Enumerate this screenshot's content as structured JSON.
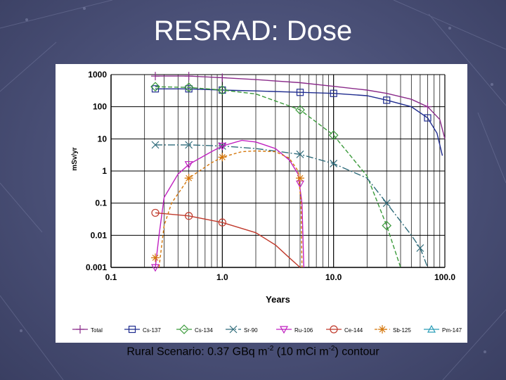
{
  "slide": {
    "title": "RESRAD: Dose",
    "caption": {
      "part1": "Rural Scenario: 0.37 GBq m",
      "sup1": "-2",
      "part2": " (10 mCi m",
      "sup2": "-2",
      "part3": ") contour"
    }
  },
  "chart_data": {
    "type": "line",
    "title": "",
    "xlabel": "Years",
    "ylabel": "mSv/yr",
    "x_scale": "log",
    "y_scale": "log",
    "xlim": [
      0.1,
      100
    ],
    "ylim": [
      0.001,
      1000
    ],
    "x_ticks": [
      {
        "v": 0.1,
        "label": "0.1"
      },
      {
        "v": 1,
        "label": "1.0"
      },
      {
        "v": 10,
        "label": "10.0"
      },
      {
        "v": 100,
        "label": "100.0"
      }
    ],
    "y_ticks": [
      {
        "v": 1000,
        "label": "1000"
      },
      {
        "v": 100,
        "label": "100"
      },
      {
        "v": 10,
        "label": "10"
      },
      {
        "v": 1,
        "label": "1"
      },
      {
        "v": 0.1,
        "label": "0.1"
      },
      {
        "v": 0.01,
        "label": "0.01"
      },
      {
        "v": 0.001,
        "label": "0.001"
      }
    ],
    "grid": true,
    "legend_position": "bottom",
    "series": [
      {
        "name": "Total",
        "color": "#8a2b8a",
        "marker": "plus",
        "dash": "",
        "points": [
          [
            0.25,
            900
          ],
          [
            0.5,
            900
          ],
          [
            1,
            800
          ],
          [
            2,
            700
          ],
          [
            5,
            560
          ],
          [
            10,
            430
          ],
          [
            20,
            330
          ],
          [
            30,
            260
          ],
          [
            50,
            170
          ],
          [
            70,
            100
          ],
          [
            90,
            40
          ],
          [
            100,
            10
          ]
        ],
        "markers": [
          [
            0.25,
            900
          ],
          [
            0.5,
            900
          ],
          [
            1,
            800
          ],
          [
            70,
            100
          ]
        ]
      },
      {
        "name": "Cs-137",
        "color": "#1f2c8f",
        "marker": "square",
        "dash": "",
        "points": [
          [
            0.25,
            360
          ],
          [
            0.5,
            360
          ],
          [
            1,
            330
          ],
          [
            2,
            310
          ],
          [
            5,
            280
          ],
          [
            10,
            260
          ],
          [
            20,
            220
          ],
          [
            30,
            160
          ],
          [
            50,
            100
          ],
          [
            70,
            45
          ],
          [
            85,
            15
          ],
          [
            95,
            3
          ]
        ],
        "markers": [
          [
            0.25,
            360
          ],
          [
            0.5,
            360
          ],
          [
            1,
            330
          ],
          [
            5,
            280
          ],
          [
            10,
            260
          ],
          [
            30,
            160
          ],
          [
            70,
            45
          ]
        ]
      },
      {
        "name": "Cs-134",
        "color": "#3a9a3a",
        "marker": "diamond",
        "dash": "6,3",
        "points": [
          [
            0.25,
            420
          ],
          [
            0.5,
            400
          ],
          [
            1,
            330
          ],
          [
            2,
            250
          ],
          [
            5,
            80
          ],
          [
            10,
            13
          ],
          [
            20,
            0.7
          ],
          [
            30,
            0.02
          ],
          [
            40,
            0.001
          ]
        ],
        "markers": [
          [
            0.25,
            420
          ],
          [
            0.5,
            400
          ],
          [
            1,
            330
          ],
          [
            5,
            80
          ],
          [
            10,
            13
          ],
          [
            30,
            0.02
          ]
        ]
      },
      {
        "name": "Sr-90",
        "color": "#2e6b7a",
        "marker": "x",
        "dash": "10,3,2,3",
        "points": [
          [
            0.25,
            6.5
          ],
          [
            0.5,
            6.5
          ],
          [
            1,
            6
          ],
          [
            2,
            5
          ],
          [
            5,
            3.3
          ],
          [
            10,
            1.7
          ],
          [
            20,
            0.6
          ],
          [
            30,
            0.1
          ],
          [
            50,
            0.01
          ],
          [
            60,
            0.004
          ],
          [
            70,
            0.001
          ]
        ],
        "markers": [
          [
            0.25,
            6.5
          ],
          [
            0.5,
            6.5
          ],
          [
            1,
            6
          ],
          [
            5,
            3.3
          ],
          [
            10,
            1.7
          ],
          [
            30,
            0.1
          ],
          [
            60,
            0.004
          ]
        ]
      },
      {
        "name": "Ru-106",
        "color": "#c020c0",
        "marker": "triangle-down",
        "dash": "",
        "points": [
          [
            0.25,
            0.001
          ],
          [
            0.27,
            0.01
          ],
          [
            0.3,
            0.15
          ],
          [
            0.4,
            0.8
          ],
          [
            0.5,
            1.6
          ],
          [
            0.8,
            4
          ],
          [
            1,
            6
          ],
          [
            1.5,
            9
          ],
          [
            2,
            8
          ],
          [
            3,
            5
          ],
          [
            4,
            2.2
          ],
          [
            4.8,
            0.8
          ],
          [
            5.2,
            0.1
          ],
          [
            5.4,
            0.001
          ]
        ],
        "markers": [
          [
            0.25,
            0.001
          ],
          [
            0.5,
            1.6
          ],
          [
            1,
            6
          ],
          [
            5,
            0.4
          ]
        ]
      },
      {
        "name": "Ce-144",
        "color": "#c0392b",
        "marker": "circle",
        "dash": "",
        "points": [
          [
            0.25,
            0.05
          ],
          [
            0.5,
            0.04
          ],
          [
            1,
            0.025
          ],
          [
            2,
            0.012
          ],
          [
            3,
            0.005
          ],
          [
            4,
            0.002
          ],
          [
            5,
            0.001
          ]
        ],
        "markers": [
          [
            0.25,
            0.05
          ],
          [
            0.5,
            0.04
          ],
          [
            1,
            0.025
          ]
        ]
      },
      {
        "name": "Sb-125",
        "color": "#d4760a",
        "marker": "asterisk",
        "dash": "4,3",
        "points": [
          [
            0.27,
            0.001
          ],
          [
            0.3,
            0.02
          ],
          [
            0.35,
            0.1
          ],
          [
            0.5,
            0.6
          ],
          [
            0.8,
            1.8
          ],
          [
            1,
            2.7
          ],
          [
            1.5,
            4
          ],
          [
            2,
            4.2
          ],
          [
            3,
            4
          ],
          [
            4,
            2.5
          ],
          [
            4.8,
            1
          ],
          [
            5.1,
            0.1
          ],
          [
            5.2,
            0.001
          ]
        ],
        "markers": [
          [
            0.25,
            0.002
          ],
          [
            0.5,
            0.6
          ],
          [
            1,
            2.7
          ],
          [
            5,
            0.6
          ]
        ]
      },
      {
        "name": "Pm-147",
        "color": "#2a9db8",
        "marker": "triangle-up",
        "dash": "",
        "points": [],
        "markers": []
      }
    ]
  }
}
